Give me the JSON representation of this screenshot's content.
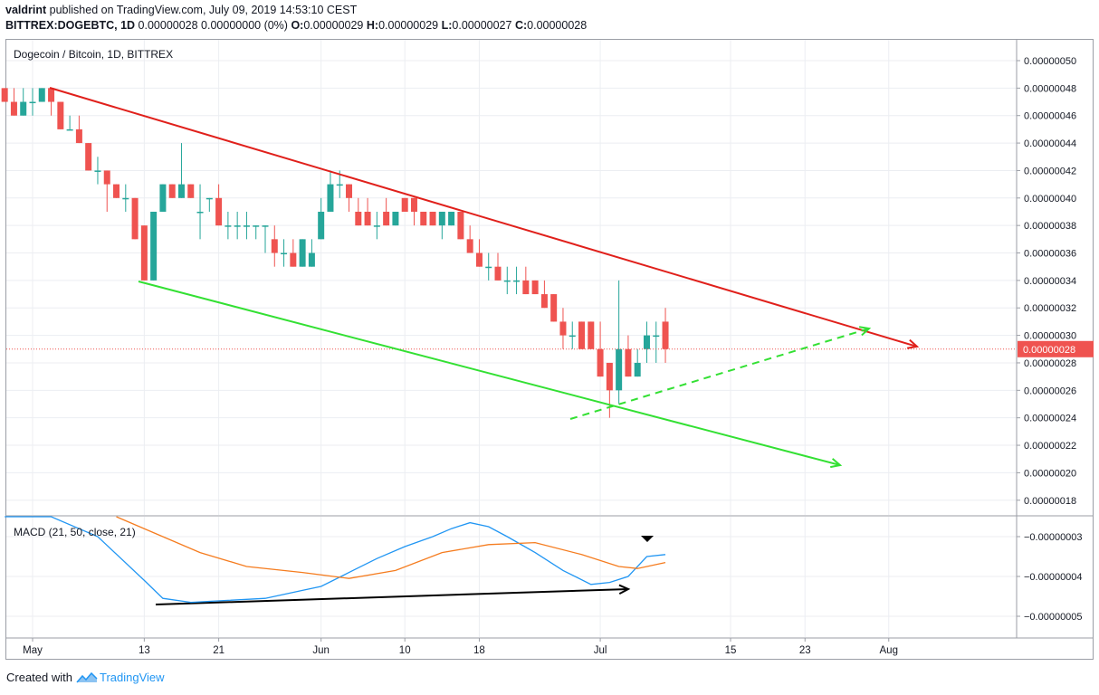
{
  "header": {
    "author": "valdrint",
    "published_text": "published on TradingView.com, July 09, 2019 14:53:10 CEST",
    "symbol": "BITTREX:DOGEBTC, 1D",
    "quote_text": "0.00000028 0.00000000 (0%)",
    "o_label": "O:",
    "o_value": "0.00000029",
    "h_label": "H:",
    "h_value": "0.00000029",
    "l_label": "L:",
    "l_value": "0.00000027",
    "c_label": "C:",
    "c_value": "0.00000028"
  },
  "main_pane": {
    "legend": "Dogecoin / Bitcoin, 1D, BITTREX",
    "current_price_label": "0.00000028"
  },
  "macd_pane": {
    "legend": "MACD (21, 50, close, 21)"
  },
  "footer": {
    "created_with": "Created with",
    "brand": "TradingView"
  },
  "colors": {
    "up": "#26a69a",
    "down": "#ef5350",
    "resistance": "#e0201b",
    "support": "#33e033",
    "macd": "#2196f3",
    "signal": "#f57c1f",
    "price_line": "#ef5350"
  },
  "chart_data": [
    {
      "type": "candlestick",
      "title": "Dogecoin / Bitcoin, 1D, BITTREX",
      "price_scale_unit": "BTC",
      "ylim": [
        1.7e-07,
        5.13e-07
      ],
      "y_ticks": [
        "0.00000050",
        "0.00000048",
        "0.00000046",
        "0.00000044",
        "0.00000042",
        "0.00000040",
        "0.00000038",
        "0.00000036",
        "0.00000034",
        "0.00000032",
        "0.00000030",
        "0.00000028",
        "0.00000026",
        "0.00000024",
        "0.00000022",
        "0.00000020",
        "0.00000018"
      ],
      "y_tick_values": [
        50,
        48,
        46,
        44,
        42,
        40,
        38,
        36,
        34,
        32,
        30,
        28,
        26,
        24,
        22,
        20,
        18
      ],
      "x_ticks": [
        {
          "label": "May",
          "date": "2019-05-01"
        },
        {
          "label": "13",
          "date": "2019-05-13"
        },
        {
          "label": "21",
          "date": "2019-05-21"
        },
        {
          "label": "Jun",
          "date": "2019-06-01"
        },
        {
          "label": "10",
          "date": "2019-06-10"
        },
        {
          "label": "18",
          "date": "2019-06-18"
        },
        {
          "label": "Jul",
          "date": "2019-07-01"
        },
        {
          "label": "15",
          "date": "2019-07-15"
        },
        {
          "label": "23",
          "date": "2019-07-23"
        },
        {
          "label": "Aug",
          "date": "2019-08-01"
        }
      ],
      "value_scale": "1e-8 BTC",
      "candles_ohlc": [
        [
          "2019-04-28",
          48,
          48,
          47,
          47
        ],
        [
          "2019-04-29",
          47,
          48,
          46,
          46
        ],
        [
          "2019-04-30",
          46,
          48,
          46,
          47
        ],
        [
          "2019-05-01",
          47,
          48,
          46,
          47
        ],
        [
          "2019-05-02",
          47,
          48,
          47,
          48
        ],
        [
          "2019-05-03",
          48,
          48,
          46,
          47
        ],
        [
          "2019-05-04",
          47,
          47,
          45,
          45
        ],
        [
          "2019-05-05",
          45,
          46,
          45,
          45
        ],
        [
          "2019-05-06",
          45,
          46,
          44,
          44
        ],
        [
          "2019-05-07",
          44,
          44,
          42,
          42
        ],
        [
          "2019-05-08",
          42,
          43,
          41,
          42
        ],
        [
          "2019-05-09",
          42,
          42,
          39,
          41
        ],
        [
          "2019-05-10",
          41,
          41,
          40,
          40
        ],
        [
          "2019-05-11",
          40,
          41,
          39,
          40
        ],
        [
          "2019-05-12",
          40,
          40,
          37,
          37
        ],
        [
          "2019-05-13",
          38,
          38,
          34,
          34
        ],
        [
          "2019-05-14",
          34,
          39,
          34,
          39
        ],
        [
          "2019-05-15",
          39,
          41,
          39,
          41
        ],
        [
          "2019-05-16",
          41,
          41,
          40,
          40
        ],
        [
          "2019-05-17",
          40,
          44,
          40,
          41
        ],
        [
          "2019-05-18",
          41,
          41,
          40,
          40
        ],
        [
          "2019-05-19",
          39,
          41,
          37,
          39
        ],
        [
          "2019-05-20",
          40,
          40,
          39,
          40
        ],
        [
          "2019-05-21",
          40,
          41,
          38,
          38
        ],
        [
          "2019-05-22",
          38,
          39,
          37,
          38
        ],
        [
          "2019-05-23",
          38,
          39,
          37,
          38
        ],
        [
          "2019-05-24",
          38,
          39,
          37,
          38
        ],
        [
          "2019-05-25",
          38,
          38,
          37,
          38
        ],
        [
          "2019-05-26",
          38,
          38,
          36,
          38
        ],
        [
          "2019-05-27",
          37,
          38,
          35,
          36
        ],
        [
          "2019-05-28",
          36,
          37,
          35,
          36
        ],
        [
          "2019-05-29",
          36,
          37,
          35,
          35
        ],
        [
          "2019-05-30",
          35,
          37,
          35,
          37
        ],
        [
          "2019-05-31",
          35,
          37,
          35,
          36
        ],
        [
          "2019-06-01",
          37,
          40,
          37,
          39
        ],
        [
          "2019-06-02",
          39,
          42,
          39,
          41
        ],
        [
          "2019-06-03",
          41,
          42,
          40,
          41
        ],
        [
          "2019-06-04",
          41,
          41,
          39,
          40
        ],
        [
          "2019-06-05",
          39,
          40,
          38,
          38
        ],
        [
          "2019-06-06",
          39,
          40,
          38,
          38
        ],
        [
          "2019-06-07",
          38,
          39,
          37,
          38
        ],
        [
          "2019-06-08",
          39,
          40,
          38,
          38
        ],
        [
          "2019-06-09",
          38,
          39,
          38,
          39
        ],
        [
          "2019-06-10",
          40,
          40,
          39,
          39
        ],
        [
          "2019-06-11",
          40,
          40,
          38,
          39
        ],
        [
          "2019-06-12",
          39,
          39,
          38,
          38
        ],
        [
          "2019-06-13",
          39,
          39,
          38,
          38
        ],
        [
          "2019-06-14",
          38,
          39,
          37,
          39
        ],
        [
          "2019-06-15",
          38,
          39,
          38,
          39
        ],
        [
          "2019-06-16",
          39,
          39,
          37,
          37
        ],
        [
          "2019-06-17",
          37,
          38,
          36,
          36
        ],
        [
          "2019-06-18",
          36,
          37,
          35,
          35
        ],
        [
          "2019-06-19",
          35,
          36,
          34,
          35
        ],
        [
          "2019-06-20",
          35,
          36,
          34,
          34
        ],
        [
          "2019-06-21",
          34,
          35,
          33,
          34
        ],
        [
          "2019-06-22",
          34,
          35,
          33,
          34
        ],
        [
          "2019-06-23",
          34,
          35,
          33,
          33
        ],
        [
          "2019-06-24",
          34,
          34,
          33,
          33
        ],
        [
          "2019-06-25",
          33,
          34,
          32,
          32
        ],
        [
          "2019-06-26",
          33,
          33,
          31,
          31
        ],
        [
          "2019-06-27",
          31,
          32,
          29,
          30
        ],
        [
          "2019-06-28",
          30,
          31,
          29,
          30
        ],
        [
          "2019-06-29",
          31,
          31,
          29,
          29
        ],
        [
          "2019-06-30",
          31,
          31,
          29,
          29
        ],
        [
          "2019-07-01",
          29,
          31,
          27,
          27
        ],
        [
          "2019-07-02",
          28,
          28,
          24,
          26
        ],
        [
          "2019-07-03",
          26,
          34,
          25,
          29
        ],
        [
          "2019-07-04",
          29,
          30,
          27,
          27
        ],
        [
          "2019-07-05",
          27,
          29,
          27,
          28
        ],
        [
          "2019-07-06",
          29,
          31,
          28,
          30
        ],
        [
          "2019-07-07",
          30,
          31,
          28,
          30
        ],
        [
          "2019-07-08",
          31,
          32,
          28,
          29
        ]
      ]
    },
    {
      "type": "line",
      "title": "MACD (21, 50, close, 21)",
      "y_ticks": [
        "−0.00000003",
        "−0.00000004",
        "−0.00000005"
      ],
      "series": [
        {
          "name": "MACD",
          "values": [
            [
              "2019-04-28",
              -2.35
            ],
            [
              "2019-05-03",
              -2.45
            ],
            [
              "2019-05-08",
              -3.0
            ],
            [
              "2019-05-13",
              -4.1
            ],
            [
              "2019-05-15",
              -4.55
            ],
            [
              "2019-05-18",
              -4.65
            ],
            [
              "2019-05-22",
              -4.6
            ],
            [
              "2019-05-26",
              -4.55
            ],
            [
              "2019-05-30",
              -4.35
            ],
            [
              "2019-06-01",
              -4.25
            ],
            [
              "2019-06-04",
              -3.9
            ],
            [
              "2019-06-07",
              -3.55
            ],
            [
              "2019-06-10",
              -3.25
            ],
            [
              "2019-06-13",
              -3.0
            ],
            [
              "2019-06-15",
              -2.8
            ],
            [
              "2019-06-17",
              -2.65
            ],
            [
              "2019-06-19",
              -2.75
            ],
            [
              "2019-06-21",
              -3.0
            ],
            [
              "2019-06-24",
              -3.4
            ],
            [
              "2019-06-27",
              -3.85
            ],
            [
              "2019-06-30",
              -4.2
            ],
            [
              "2019-07-02",
              -4.15
            ],
            [
              "2019-07-04",
              -4.0
            ],
            [
              "2019-07-06",
              -3.5
            ],
            [
              "2019-07-08",
              -3.45
            ]
          ]
        },
        {
          "name": "Signal",
          "values": [
            [
              "2019-05-10",
              -2.45
            ],
            [
              "2019-05-14",
              -2.9
            ],
            [
              "2019-05-19",
              -3.4
            ],
            [
              "2019-05-24",
              -3.75
            ],
            [
              "2019-05-30",
              -3.9
            ],
            [
              "2019-06-04",
              -4.05
            ],
            [
              "2019-06-09",
              -3.85
            ],
            [
              "2019-06-14",
              -3.4
            ],
            [
              "2019-06-19",
              -3.2
            ],
            [
              "2019-06-24",
              -3.15
            ],
            [
              "2019-06-29",
              -3.45
            ],
            [
              "2019-07-03",
              -3.75
            ],
            [
              "2019-07-05",
              -3.8
            ],
            [
              "2019-07-08",
              -3.65
            ]
          ]
        }
      ]
    }
  ]
}
